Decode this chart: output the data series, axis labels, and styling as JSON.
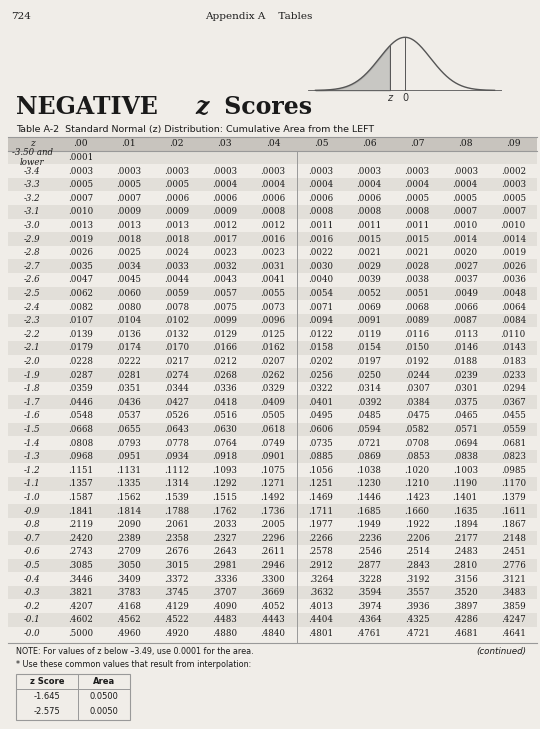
{
  "page_num": "724",
  "appendix": "Appendix A    Tables",
  "title_bold": "NEGATIVE ",
  "title_italic": "z",
  "title_rest": " Scores",
  "table_title": "Table A-2  Standard Normal (z) Distribution: Cumulative Area from the LEFT",
  "columns": [
    "z",
    ".00",
    ".01",
    ".02",
    ".03",
    ".04",
    ".05",
    ".06",
    ".07",
    ".08",
    ".09"
  ],
  "rows": [
    [
      "-3.50 and\nlower",
      ".0001",
      "",
      "",
      "",
      "",
      "",
      "",
      "",
      "",
      ""
    ],
    [
      "-3.4",
      ".0003",
      ".0003",
      ".0003",
      ".0003",
      ".0003",
      ".0003",
      ".0003",
      ".0003",
      ".0003",
      ".0002"
    ],
    [
      "-3.3",
      ".0005",
      ".0005",
      ".0005",
      ".0004",
      ".0004",
      ".0004",
      ".0004",
      ".0004",
      ".0004",
      ".0003"
    ],
    [
      "-3.2",
      ".0007",
      ".0007",
      ".0006",
      ".0006",
      ".0006",
      ".0006",
      ".0006",
      ".0005",
      ".0005",
      ".0005"
    ],
    [
      "-3.1",
      ".0010",
      ".0009",
      ".0009",
      ".0009",
      ".0008",
      ".0008",
      ".0008",
      ".0008",
      ".0007",
      ".0007"
    ],
    [
      "-3.0",
      ".0013",
      ".0013",
      ".0013",
      ".0012",
      ".0012",
      ".0011",
      ".0011",
      ".0011",
      ".0010",
      ".0010"
    ],
    [
      "-2.9",
      ".0019",
      ".0018",
      ".0018",
      ".0017",
      ".0016",
      ".0016",
      ".0015",
      ".0015",
      ".0014",
      ".0014"
    ],
    [
      "-2.8",
      ".0026",
      ".0025",
      ".0024",
      ".0023",
      ".0023",
      ".0022",
      ".0021",
      ".0021",
      ".0020",
      ".0019"
    ],
    [
      "-2.7",
      ".0035",
      ".0034",
      ".0033",
      ".0032",
      ".0031",
      ".0030",
      ".0029",
      ".0028",
      ".0027",
      ".0026"
    ],
    [
      "-2.6",
      ".0047",
      ".0045",
      ".0044",
      ".0043",
      ".0041",
      ".0040",
      ".0039",
      ".0038",
      ".0037",
      ".0036"
    ],
    [
      "-2.5",
      ".0062",
      ".0060",
      ".0059",
      ".0057",
      ".0055",
      ".0054",
      ".0052",
      ".0051",
      ".0049",
      ".0048"
    ],
    [
      "-2.4",
      ".0082",
      ".0080",
      ".0078",
      ".0075",
      ".0073",
      ".0071",
      ".0069",
      ".0068",
      ".0066",
      ".0064"
    ],
    [
      "-2.3",
      ".0107",
      ".0104",
      ".0102",
      ".0099",
      ".0096",
      ".0094",
      ".0091",
      ".0089",
      ".0087",
      ".0084"
    ],
    [
      "-2.2",
      ".0139",
      ".0136",
      ".0132",
      ".0129",
      ".0125",
      ".0122",
      ".0119",
      ".0116",
      ".0113",
      ".0110"
    ],
    [
      "-2.1",
      ".0179",
      ".0174",
      ".0170",
      ".0166",
      ".0162",
      ".0158",
      ".0154",
      ".0150",
      ".0146",
      ".0143"
    ],
    [
      "-2.0",
      ".0228",
      ".0222",
      ".0217",
      ".0212",
      ".0207",
      ".0202",
      ".0197",
      ".0192",
      ".0188",
      ".0183"
    ],
    [
      "-1.9",
      ".0287",
      ".0281",
      ".0274",
      ".0268",
      ".0262",
      ".0256",
      ".0250",
      ".0244",
      ".0239",
      ".0233"
    ],
    [
      "-1.8",
      ".0359",
      ".0351",
      ".0344",
      ".0336",
      ".0329",
      ".0322",
      ".0314",
      ".0307",
      ".0301",
      ".0294"
    ],
    [
      "-1.7",
      ".0446",
      ".0436",
      ".0427",
      ".0418",
      ".0409",
      ".0401",
      ".0392",
      ".0384",
      ".0375",
      ".0367"
    ],
    [
      "-1.6",
      ".0548",
      ".0537",
      ".0526",
      ".0516",
      ".0505",
      ".0495",
      ".0485",
      ".0475",
      ".0465",
      ".0455"
    ],
    [
      "-1.5",
      ".0668",
      ".0655",
      ".0643",
      ".0630",
      ".0618",
      ".0606",
      ".0594",
      ".0582",
      ".0571",
      ".0559"
    ],
    [
      "-1.4",
      ".0808",
      ".0793",
      ".0778",
      ".0764",
      ".0749",
      ".0735",
      ".0721",
      ".0708",
      ".0694",
      ".0681"
    ],
    [
      "-1.3",
      ".0968",
      ".0951",
      ".0934",
      ".0918",
      ".0901",
      ".0885",
      ".0869",
      ".0853",
      ".0838",
      ".0823"
    ],
    [
      "-1.2",
      ".1151",
      ".1131",
      ".1112",
      ".1093",
      ".1075",
      ".1056",
      ".1038",
      ".1020",
      ".1003",
      ".0985"
    ],
    [
      "-1.1",
      ".1357",
      ".1335",
      ".1314",
      ".1292",
      ".1271",
      ".1251",
      ".1230",
      ".1210",
      ".1190",
      ".1170"
    ],
    [
      "-1.0",
      ".1587",
      ".1562",
      ".1539",
      ".1515",
      ".1492",
      ".1469",
      ".1446",
      ".1423",
      ".1401",
      ".1379"
    ],
    [
      "-0.9",
      ".1841",
      ".1814",
      ".1788",
      ".1762",
      ".1736",
      ".1711",
      ".1685",
      ".1660",
      ".1635",
      ".1611"
    ],
    [
      "-0.8",
      ".2119",
      ".2090",
      ".2061",
      ".2033",
      ".2005",
      ".1977",
      ".1949",
      ".1922",
      ".1894",
      ".1867"
    ],
    [
      "-0.7",
      ".2420",
      ".2389",
      ".2358",
      ".2327",
      ".2296",
      ".2266",
      ".2236",
      ".2206",
      ".2177",
      ".2148"
    ],
    [
      "-0.6",
      ".2743",
      ".2709",
      ".2676",
      ".2643",
      ".2611",
      ".2578",
      ".2546",
      ".2514",
      ".2483",
      ".2451"
    ],
    [
      "-0.5",
      ".3085",
      ".3050",
      ".3015",
      ".2981",
      ".2946",
      ".2912",
      ".2877",
      ".2843",
      ".2810",
      ".2776"
    ],
    [
      "-0.4",
      ".3446",
      ".3409",
      ".3372",
      ".3336",
      ".3300",
      ".3264",
      ".3228",
      ".3192",
      ".3156",
      ".3121"
    ],
    [
      "-0.3",
      ".3821",
      ".3783",
      ".3745",
      ".3707",
      ".3669",
      ".3632",
      ".3594",
      ".3557",
      ".3520",
      ".3483"
    ],
    [
      "-0.2",
      ".4207",
      ".4168",
      ".4129",
      ".4090",
      ".4052",
      ".4013",
      ".3974",
      ".3936",
      ".3897",
      ".3859"
    ],
    [
      "-0.1",
      ".4602",
      ".4562",
      ".4522",
      ".4483",
      ".4443",
      ".4404",
      ".4364",
      ".4325",
      ".4286",
      ".4247"
    ],
    [
      "-0.0",
      ".5000",
      ".4960",
      ".4920",
      ".4880",
      ".4840",
      ".4801",
      ".4761",
      ".4721",
      ".4681",
      ".4641"
    ]
  ],
  "note_line1": "NOTE: For values of z below –3.49, use 0.0001 for the area.",
  "note_line2": "* Use these common values that result from interpolation:",
  "interp_headers": [
    "z Score",
    "Area"
  ],
  "interp_rows": [
    [
      "-1.645",
      "0.0500"
    ],
    [
      "-2.575",
      "0.0050"
    ]
  ],
  "continued": "(continued)",
  "bg_color": "#f0ede8",
  "header_bg": "#c8c4be",
  "alt_row_bg": "#e2dfd9",
  "line_color": "#999999",
  "text_color": "#1a1a1a"
}
